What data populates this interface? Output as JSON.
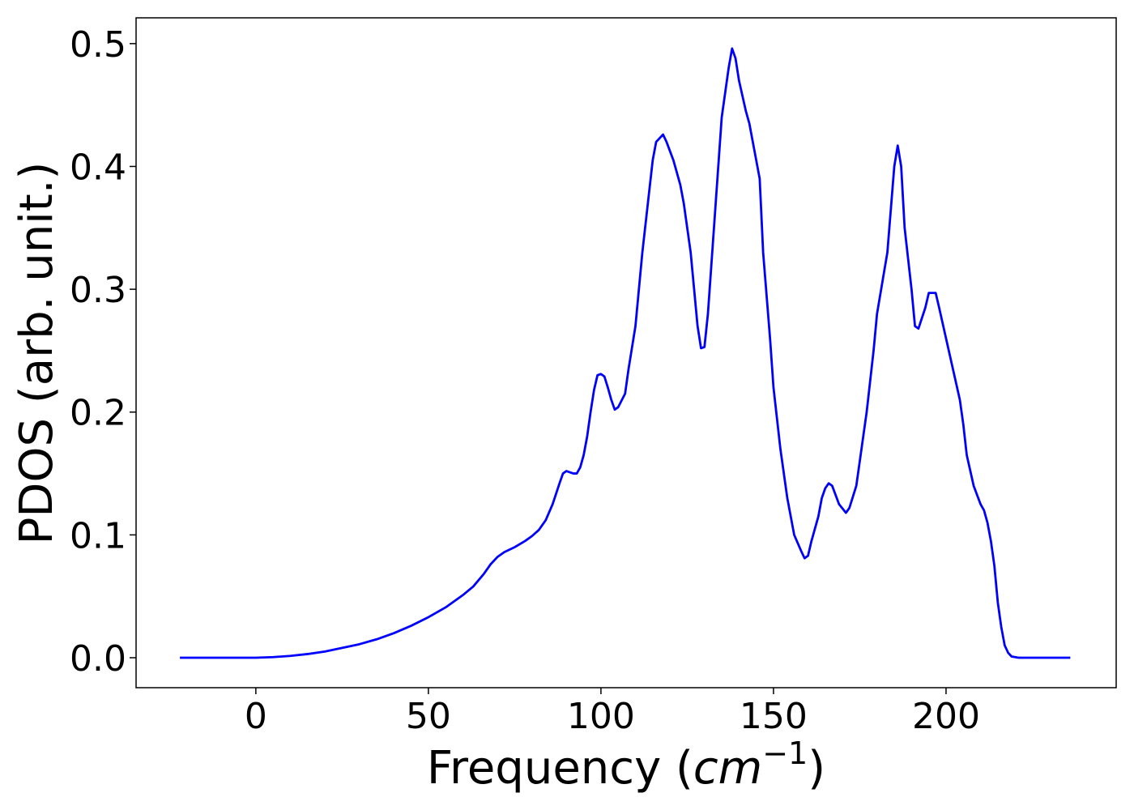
{
  "chart_data": {
    "type": "line",
    "xlabel": [
      "Frequency (",
      "cm",
      "−1",
      ")"
    ],
    "ylabel": "PDOS (arb. unit.)",
    "xlim": [
      -34.7,
      249.3
    ],
    "ylim": [
      -0.0244,
      0.521
    ],
    "xticks": [
      0,
      50,
      100,
      150,
      200
    ],
    "yticks": [
      {
        "value": 0,
        "label": "0.0"
      },
      0.1,
      0.2,
      0.3,
      0.4,
      0.5
    ],
    "series": [
      {
        "color": "#0000ff",
        "x": [
          -22,
          0,
          5,
          10,
          15,
          20,
          25,
          30,
          35,
          40,
          45,
          50,
          55,
          60,
          63,
          66,
          68,
          70,
          72,
          75,
          78,
          80,
          82,
          84,
          86,
          88,
          89,
          90,
          91,
          92,
          93,
          94,
          95,
          96,
          97,
          98,
          99,
          100,
          101,
          102,
          103,
          104,
          105,
          107,
          108,
          110,
          112,
          114,
          115,
          116,
          118,
          119,
          121,
          123,
          124,
          126,
          128,
          129,
          130,
          131,
          133,
          135,
          137,
          138,
          139,
          140,
          142,
          143,
          144,
          146,
          147,
          149,
          150,
          152,
          154,
          156,
          158,
          159,
          160,
          161,
          163,
          164,
          165,
          166,
          167,
          169,
          171,
          172,
          174,
          175,
          177,
          179,
          180,
          183,
          185,
          186,
          187,
          188,
          190,
          191,
          192,
          194,
          195,
          197,
          198,
          200,
          202,
          204,
          205,
          206,
          208,
          210,
          211,
          212,
          213,
          214,
          215,
          216,
          217,
          218,
          219,
          221,
          236
        ],
        "values": [
          0,
          0,
          0.0005,
          0.0015,
          0.003,
          0.005,
          0.008,
          0.011,
          0.015,
          0.02,
          0.026,
          0.033,
          0.041,
          0.051,
          0.058,
          0.068,
          0.076,
          0.082,
          0.086,
          0.09,
          0.095,
          0.099,
          0.104,
          0.112,
          0.125,
          0.142,
          0.15,
          0.152,
          0.151,
          0.15,
          0.15,
          0.155,
          0.165,
          0.18,
          0.2,
          0.218,
          0.23,
          0.231,
          0.229,
          0.22,
          0.21,
          0.202,
          0.204,
          0.215,
          0.235,
          0.27,
          0.33,
          0.38,
          0.405,
          0.42,
          0.426,
          0.42,
          0.405,
          0.385,
          0.37,
          0.33,
          0.27,
          0.252,
          0.253,
          0.28,
          0.36,
          0.44,
          0.48,
          0.496,
          0.488,
          0.47,
          0.445,
          0.435,
          0.42,
          0.39,
          0.33,
          0.26,
          0.22,
          0.17,
          0.13,
          0.1,
          0.087,
          0.081,
          0.083,
          0.095,
          0.115,
          0.13,
          0.138,
          0.142,
          0.14,
          0.125,
          0.118,
          0.122,
          0.14,
          0.16,
          0.2,
          0.25,
          0.28,
          0.33,
          0.4,
          0.417,
          0.4,
          0.35,
          0.3,
          0.27,
          0.268,
          0.285,
          0.297,
          0.297,
          0.285,
          0.26,
          0.235,
          0.21,
          0.19,
          0.165,
          0.14,
          0.125,
          0.12,
          0.11,
          0.095,
          0.075,
          0.045,
          0.025,
          0.01,
          0.004,
          0.001,
          0,
          0
        ]
      }
    ]
  }
}
